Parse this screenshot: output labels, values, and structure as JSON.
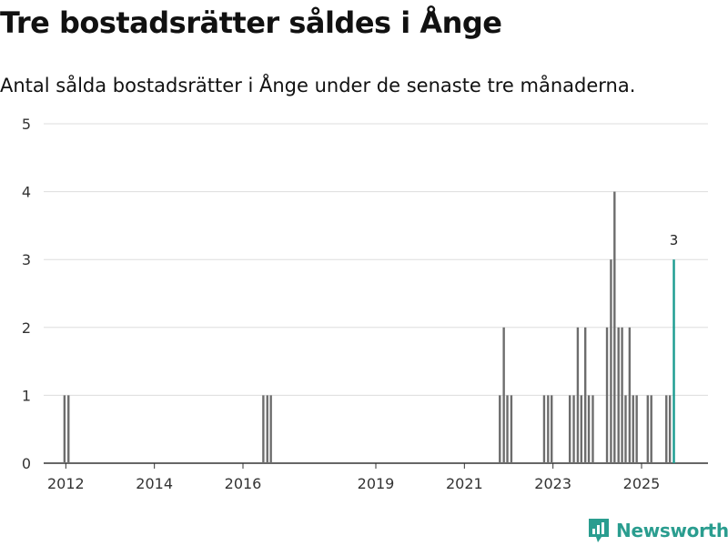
{
  "title": "Tre bostadsrätter såldes i Ånge",
  "subtitle": "Antal sålda bostadsrätter i Ånge under de senaste tre månaderna.",
  "brand": {
    "name": "Newsworthy",
    "icon": "newsworthy-logo-icon"
  },
  "colors": {
    "bar": "#6d6d6d",
    "highlight": "#1a9b8f",
    "grid": "#dddddd",
    "axis": "#333333"
  },
  "chart_data": {
    "type": "bar",
    "title": "Tre bostadsrätter såldes i Ånge",
    "xlabel": "",
    "ylabel": "",
    "ylim": [
      0,
      5
    ],
    "yticks": [
      "0",
      "1",
      "2",
      "3",
      "4",
      "5"
    ],
    "xticks": [
      "2012",
      "2014",
      "2016",
      "2019",
      "2021",
      "2023",
      "2025"
    ],
    "xtick_years": [
      2012,
      2014,
      2016,
      2019,
      2021,
      2023,
      2025
    ],
    "xlim": [
      2011.5,
      2026.5
    ],
    "highlight_label": "3",
    "series": [
      {
        "name": "Antal sålda bostadsrätter",
        "points": [
          {
            "t": 2011.97,
            "v": 1
          },
          {
            "t": 2012.06,
            "v": 1
          },
          {
            "t": 2016.46,
            "v": 1
          },
          {
            "t": 2016.55,
            "v": 1
          },
          {
            "t": 2016.63,
            "v": 1
          },
          {
            "t": 2021.8,
            "v": 1
          },
          {
            "t": 2021.89,
            "v": 2
          },
          {
            "t": 2021.97,
            "v": 1
          },
          {
            "t": 2022.06,
            "v": 1
          },
          {
            "t": 2022.8,
            "v": 1
          },
          {
            "t": 2022.89,
            "v": 1
          },
          {
            "t": 2022.97,
            "v": 1
          },
          {
            "t": 2023.38,
            "v": 1
          },
          {
            "t": 2023.47,
            "v": 1
          },
          {
            "t": 2023.56,
            "v": 2
          },
          {
            "t": 2023.64,
            "v": 1
          },
          {
            "t": 2023.73,
            "v": 2
          },
          {
            "t": 2023.81,
            "v": 1
          },
          {
            "t": 2023.9,
            "v": 1
          },
          {
            "t": 2024.22,
            "v": 2
          },
          {
            "t": 2024.31,
            "v": 3
          },
          {
            "t": 2024.39,
            "v": 4
          },
          {
            "t": 2024.48,
            "v": 2
          },
          {
            "t": 2024.56,
            "v": 2
          },
          {
            "t": 2024.64,
            "v": 1
          },
          {
            "t": 2024.73,
            "v": 2
          },
          {
            "t": 2024.81,
            "v": 1
          },
          {
            "t": 2024.89,
            "v": 1
          },
          {
            "t": 2025.14,
            "v": 1
          },
          {
            "t": 2025.22,
            "v": 1
          },
          {
            "t": 2025.56,
            "v": 1
          },
          {
            "t": 2025.64,
            "v": 1
          },
          {
            "t": 2025.73,
            "v": 3,
            "highlight": true
          }
        ]
      }
    ]
  }
}
